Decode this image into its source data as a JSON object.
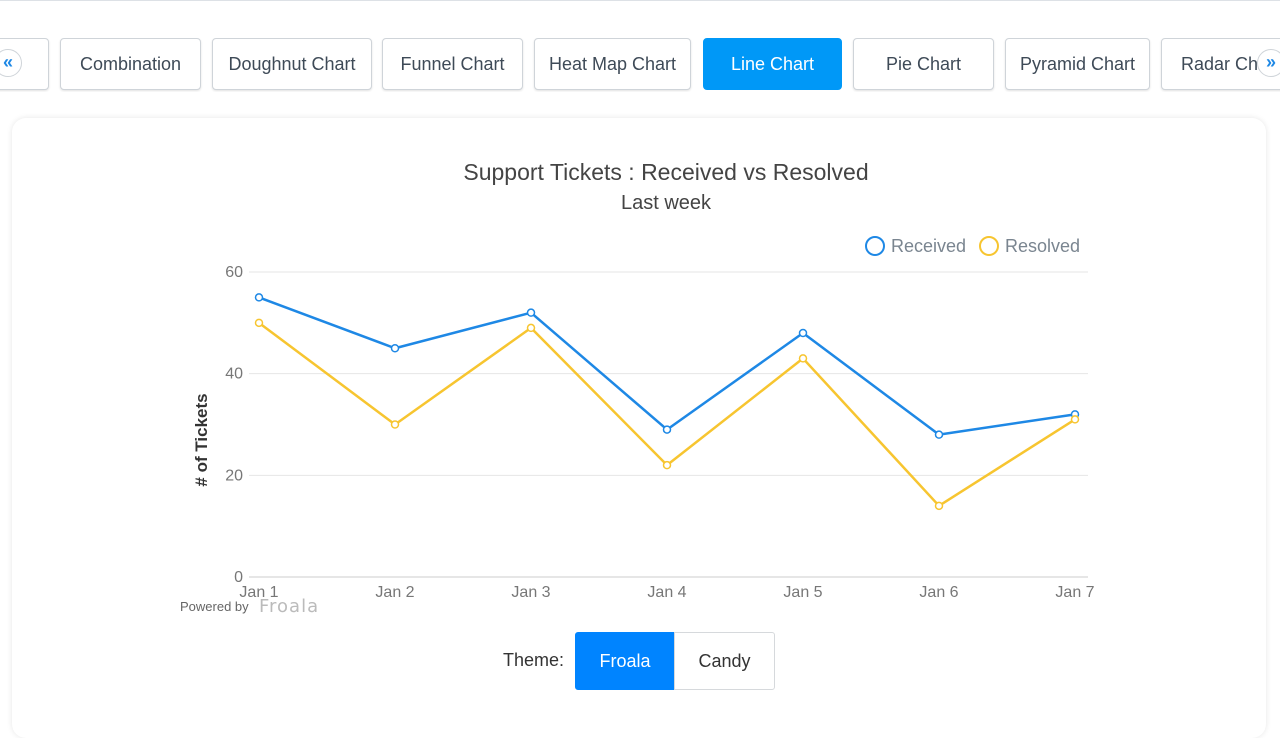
{
  "tabs": [
    {
      "label": "",
      "active": false
    },
    {
      "label": "Combination",
      "active": false
    },
    {
      "label": "Doughnut Chart",
      "active": false
    },
    {
      "label": "Funnel Chart",
      "active": false
    },
    {
      "label": "Heat Map Chart",
      "active": false
    },
    {
      "label": "Line Chart",
      "active": true
    },
    {
      "label": "Pie Chart",
      "active": false
    },
    {
      "label": "Pyramid Chart",
      "active": false
    },
    {
      "label": "Radar Ch",
      "active": false
    }
  ],
  "nav": {
    "prev_glyph": "«",
    "next_glyph": "»"
  },
  "credit": {
    "prefix": "Powered by",
    "brand": "Froala"
  },
  "theme": {
    "label": "Theme:",
    "options": [
      "Froala",
      "Candy"
    ],
    "selected": "Froala"
  },
  "colors": {
    "accent": "#0098f7",
    "received": "#1e88e5",
    "resolved": "#f7c530"
  },
  "chart_data": {
    "type": "line",
    "title": "Support Tickets : Received vs Resolved",
    "subtitle": "Last week",
    "ylabel": "# of Tickets",
    "xlabel": "",
    "categories": [
      "Jan 1",
      "Jan 2",
      "Jan 3",
      "Jan 4",
      "Jan 5",
      "Jan 6",
      "Jan 7"
    ],
    "series": [
      {
        "name": "Received",
        "values": [
          55,
          45,
          52,
          29,
          48,
          28,
          32
        ],
        "color": "#1e88e5"
      },
      {
        "name": "Resolved",
        "values": [
          50,
          30,
          49,
          22,
          43,
          14,
          31
        ],
        "color": "#f7c530"
      }
    ],
    "ylim": [
      0,
      60
    ],
    "yticks": [
      0,
      20,
      40,
      60
    ],
    "grid": true,
    "legend": "top-right"
  }
}
